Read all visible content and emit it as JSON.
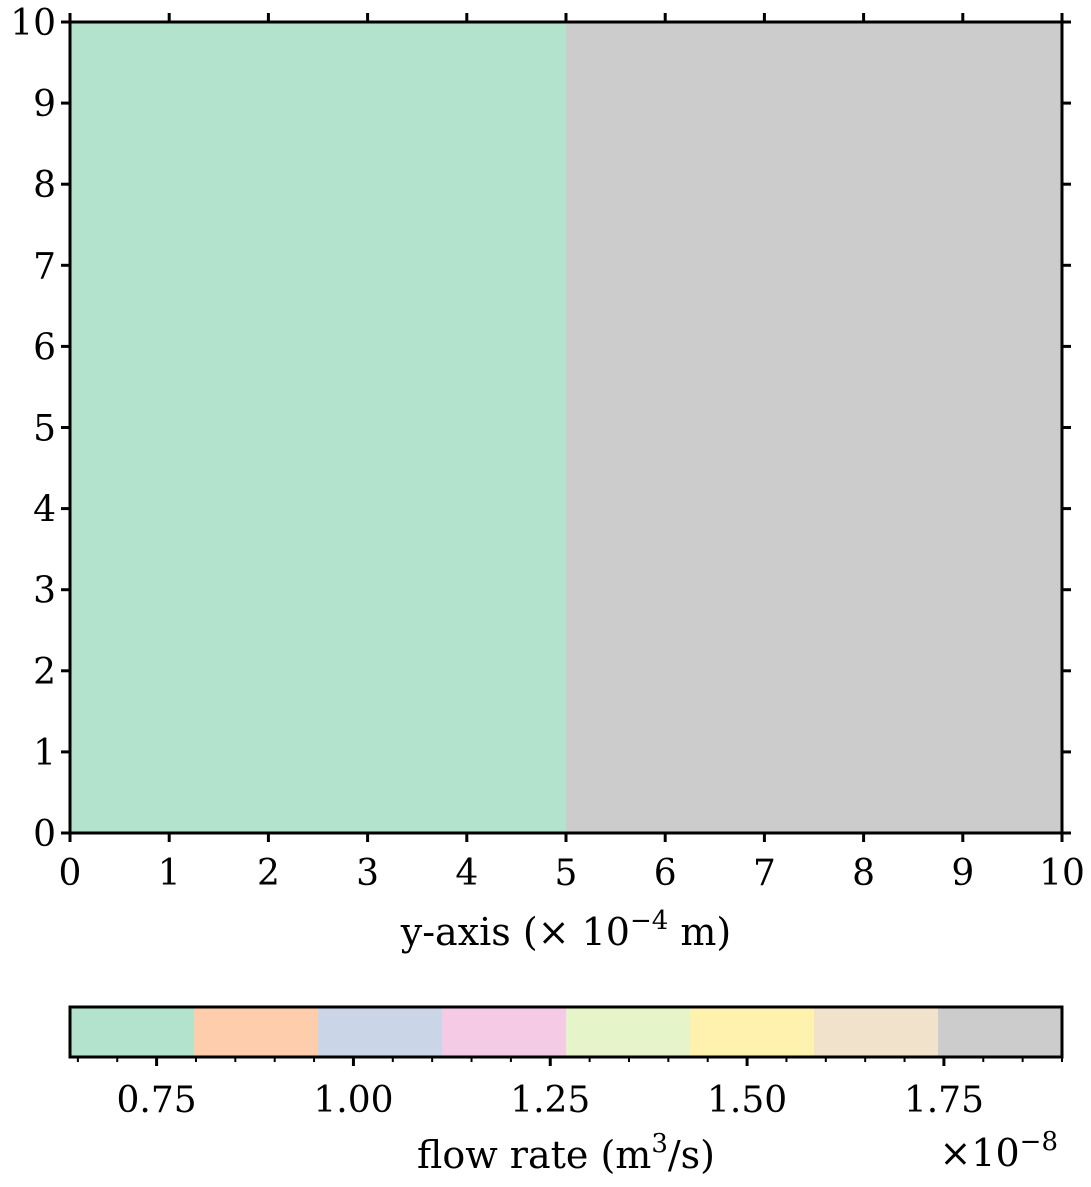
{
  "chart_data": {
    "type": "heatmap",
    "xlabel": "y-axis (× 10",
    "xlabel_exp": "−4",
    "xlabel_unit": " m)",
    "x_ticks": [
      "0",
      "1",
      "2",
      "3",
      "4",
      "5",
      "6",
      "7",
      "8",
      "9",
      "10"
    ],
    "y_ticks": [
      "0",
      "1",
      "2",
      "3",
      "4",
      "5",
      "6",
      "7",
      "8",
      "9",
      "10"
    ],
    "xlim": [
      0,
      10
    ],
    "ylim": [
      0,
      10
    ],
    "regions": [
      {
        "x_start": 0,
        "x_end": 5,
        "color": "#b3e2cd",
        "value": 0.7
      },
      {
        "x_start": 5,
        "x_end": 10,
        "color": "#cccccc",
        "value": 1.8
      }
    ],
    "colorbar": {
      "label_main": "flow rate (m",
      "label_exp": "3",
      "label_tail": "/s)",
      "scale_prefix": "×10",
      "scale_exp": "−8",
      "vmin": 0.64,
      "vmax": 1.9,
      "ticks": [
        {
          "value": 0.75,
          "label": "0.75"
        },
        {
          "value": 1.0,
          "label": "1.00"
        },
        {
          "value": 1.25,
          "label": "1.25"
        },
        {
          "value": 1.5,
          "label": "1.50"
        },
        {
          "value": 1.75,
          "label": "1.75"
        }
      ],
      "minor_step": 0.05,
      "colors": [
        "#b3e2cd",
        "#fdcdac",
        "#cbd5e8",
        "#f4cae4",
        "#e6f5c9",
        "#fff2ae",
        "#f1e2cc",
        "#cccccc"
      ]
    }
  }
}
